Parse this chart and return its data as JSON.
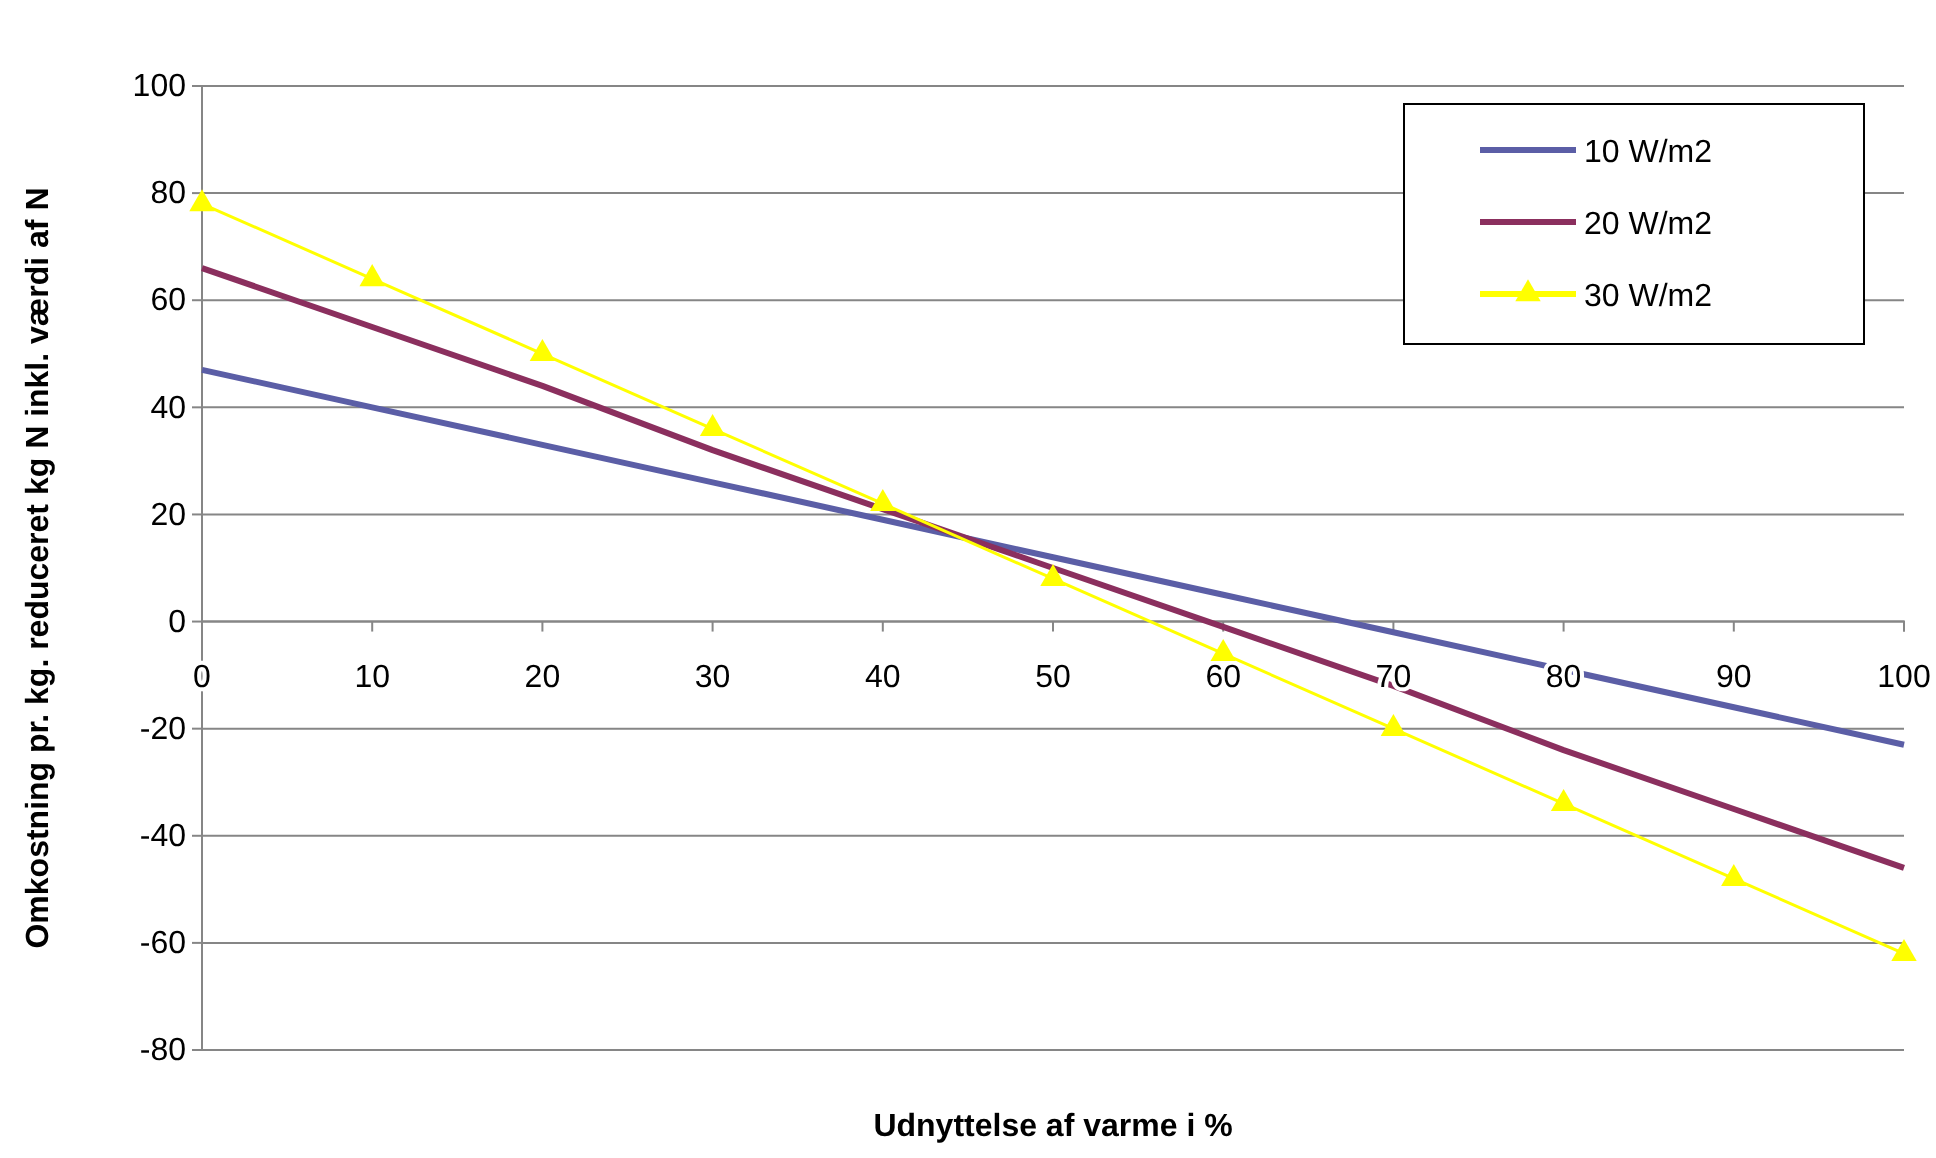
{
  "chart_data": {
    "type": "line",
    "xlabel": "Udnyttelse af varme i %",
    "ylabel": "Omkostning pr. kg. reduceret kg N inkl. værdi af N",
    "x": [
      0,
      10,
      20,
      30,
      40,
      50,
      60,
      70,
      80,
      90,
      100
    ],
    "xlim": [
      0,
      100
    ],
    "xticks": [
      0,
      10,
      20,
      30,
      40,
      50,
      60,
      70,
      80,
      90,
      100
    ],
    "ylim": [
      -80,
      100
    ],
    "yticks": [
      -80,
      -60,
      -40,
      -20,
      0,
      20,
      40,
      60,
      80,
      100
    ],
    "grid": "y",
    "legend": "top right",
    "line_style": "solid",
    "series": [
      {
        "name": "10 W/m2",
        "color": "#5b5ea6",
        "marker": "none",
        "values": [
          47,
          40,
          33,
          26,
          19,
          12,
          5,
          -2,
          -9,
          -16,
          -23
        ]
      },
      {
        "name": "20 W/m2",
        "color": "#8b2f5e",
        "marker": "none",
        "values": [
          66,
          55,
          44,
          32,
          21,
          10,
          -1,
          -12,
          -24,
          -35,
          -46
        ]
      },
      {
        "name": "30 W/m2",
        "color": "#ffff00",
        "marker": "triangle",
        "values": [
          78,
          64,
          50,
          36,
          22,
          8,
          -6,
          -20,
          -34,
          -48,
          -62
        ]
      }
    ]
  }
}
